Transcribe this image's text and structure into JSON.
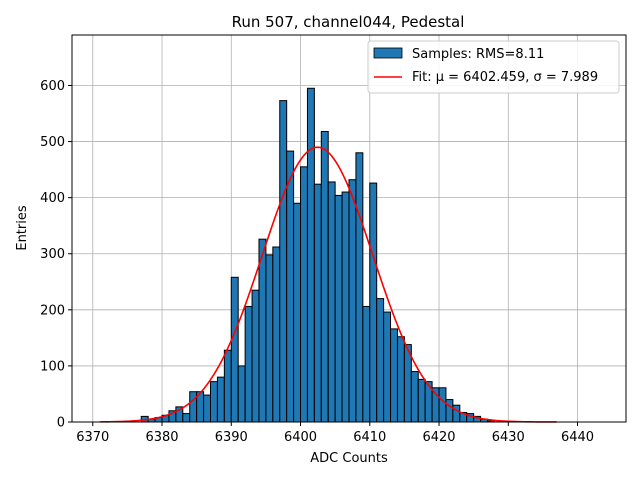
{
  "chart_data": {
    "type": "bar",
    "title": "Run 507, channel044, Pedestal",
    "xlabel": "ADC Counts",
    "ylabel": "Entries",
    "xlim": [
      6367,
      6447
    ],
    "ylim": [
      0,
      690
    ],
    "x_ticks": [
      6370,
      6380,
      6390,
      6400,
      6410,
      6420,
      6430,
      6440
    ],
    "y_ticks": [
      0,
      100,
      200,
      300,
      400,
      500,
      600
    ],
    "grid": true,
    "legend_position": "top-right",
    "bin_width": 1,
    "histogram": {
      "name": "Samples: RMS=8.11",
      "color": "#1f77b4",
      "bin_starts": [
        6377,
        6378,
        6379,
        6380,
        6381,
        6382,
        6383,
        6384,
        6385,
        6386,
        6387,
        6388,
        6389,
        6390,
        6391,
        6392,
        6393,
        6394,
        6395,
        6396,
        6397,
        6398,
        6399,
        6400,
        6401,
        6402,
        6403,
        6404,
        6405,
        6406,
        6407,
        6408,
        6409,
        6410,
        6411,
        6412,
        6413,
        6414,
        6415,
        6416,
        6417,
        6418,
        6419,
        6420,
        6421,
        6422,
        6423,
        6424,
        6425,
        6426,
        6427
      ],
      "values": [
        10,
        5,
        8,
        12,
        20,
        27,
        15,
        54,
        54,
        48,
        72,
        80,
        128,
        258,
        100,
        206,
        235,
        326,
        298,
        312,
        573,
        483,
        390,
        455,
        595,
        424,
        518,
        428,
        404,
        410,
        432,
        480,
        206,
        426,
        220,
        196,
        166,
        152,
        138,
        90,
        76,
        72,
        61,
        61,
        40,
        30,
        17,
        15,
        10,
        5,
        2
      ]
    },
    "fit": {
      "name": "Fit: μ = 6402.459, σ = 7.989",
      "color": "#ff0000",
      "mu": 6402.459,
      "sigma": 7.989,
      "amplitude": 490,
      "x_range": [
        6371,
        6437
      ]
    }
  }
}
